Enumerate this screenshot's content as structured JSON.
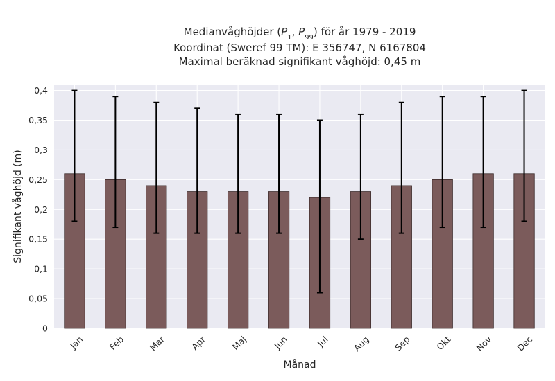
{
  "chart_data": {
    "type": "bar",
    "title_lines": [
      "Medianvåghöjder (P1, P99) för år 1979 - 2019",
      "Koordinat (Sweref 99 TM): E 356747, N 6167804",
      "Maximal beräknad signifikant våghöjd: 0,45 m"
    ],
    "xlabel": "Månad",
    "ylabel": "Signifikant våghöjd (m)",
    "categories": [
      "Jan",
      "Feb",
      "Mar",
      "Apr",
      "Maj",
      "Jun",
      "Jul",
      "Aug",
      "Sep",
      "Okt",
      "Nov",
      "Dec"
    ],
    "values": [
      0.26,
      0.25,
      0.24,
      0.23,
      0.23,
      0.23,
      0.22,
      0.23,
      0.24,
      0.25,
      0.26,
      0.26
    ],
    "error_low": [
      0.18,
      0.17,
      0.16,
      0.16,
      0.16,
      0.16,
      0.06,
      0.15,
      0.16,
      0.17,
      0.17,
      0.18
    ],
    "error_high": [
      0.4,
      0.39,
      0.38,
      0.37,
      0.36,
      0.36,
      0.35,
      0.36,
      0.38,
      0.39,
      0.39,
      0.4
    ],
    "ylim": [
      0,
      0.41
    ],
    "yticks": [
      0,
      0.05,
      0.1,
      0.15,
      0.2,
      0.25,
      0.3,
      0.35,
      0.4
    ],
    "ytick_labels": [
      "0",
      "0,05",
      "0,1",
      "0,15",
      "0,2",
      "0,25",
      "0,3",
      "0,35",
      "0,4"
    ],
    "grid": true,
    "colors": {
      "bar": "#7b5b5b",
      "bar_edge": "#3d2c2c",
      "error_bar": "#000000",
      "plot_background": "#eaeaf2",
      "grid": "#ffffff"
    }
  }
}
